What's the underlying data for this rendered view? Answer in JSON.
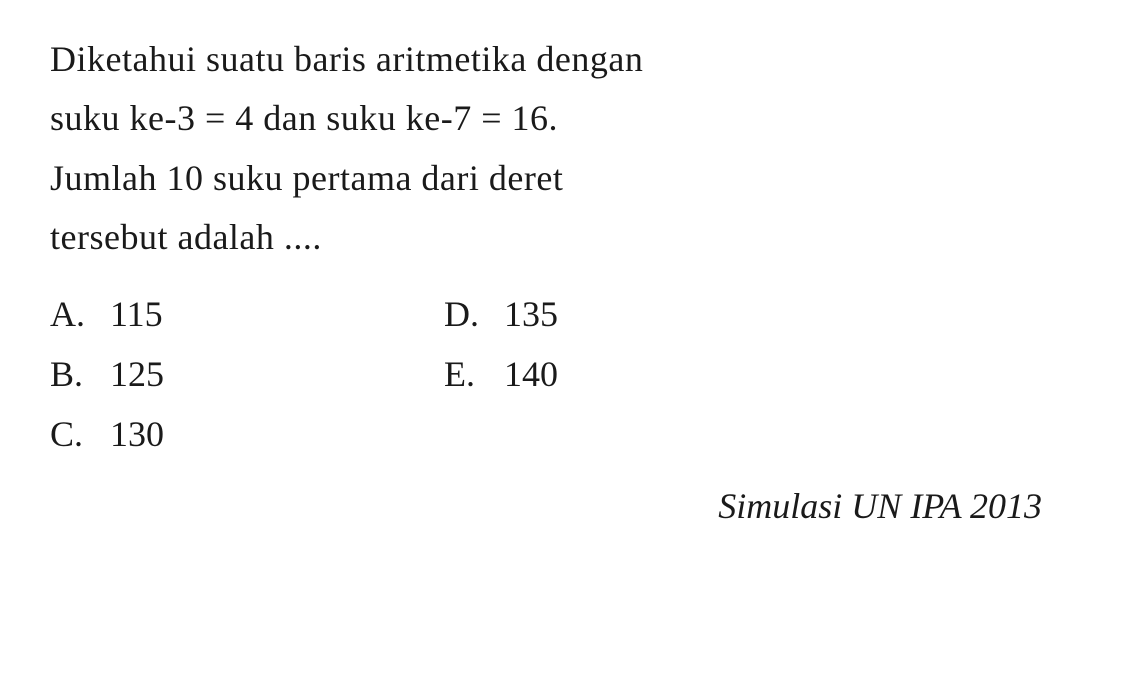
{
  "question": {
    "line1": "Diketahui suatu baris aritmetika dengan",
    "line2": "suku ke-3 = 4 dan suku ke-7 = 16.",
    "line3": "Jumlah 10 suku pertama dari deret",
    "line4": "tersebut adalah ...."
  },
  "options": {
    "left": [
      {
        "letter": "A.",
        "value": "115"
      },
      {
        "letter": "B.",
        "value": "125"
      },
      {
        "letter": "C.",
        "value": "130"
      }
    ],
    "right": [
      {
        "letter": "D.",
        "value": "135"
      },
      {
        "letter": "E.",
        "value": "140"
      }
    ]
  },
  "source": "Simulasi UN IPA 2013",
  "styling": {
    "background_color": "#ffffff",
    "text_color": "#1a1a1a",
    "font_family": "Georgia, Times New Roman, serif",
    "question_fontsize": 36,
    "option_fontsize": 36,
    "source_fontsize": 36,
    "line_height": 1.65
  }
}
